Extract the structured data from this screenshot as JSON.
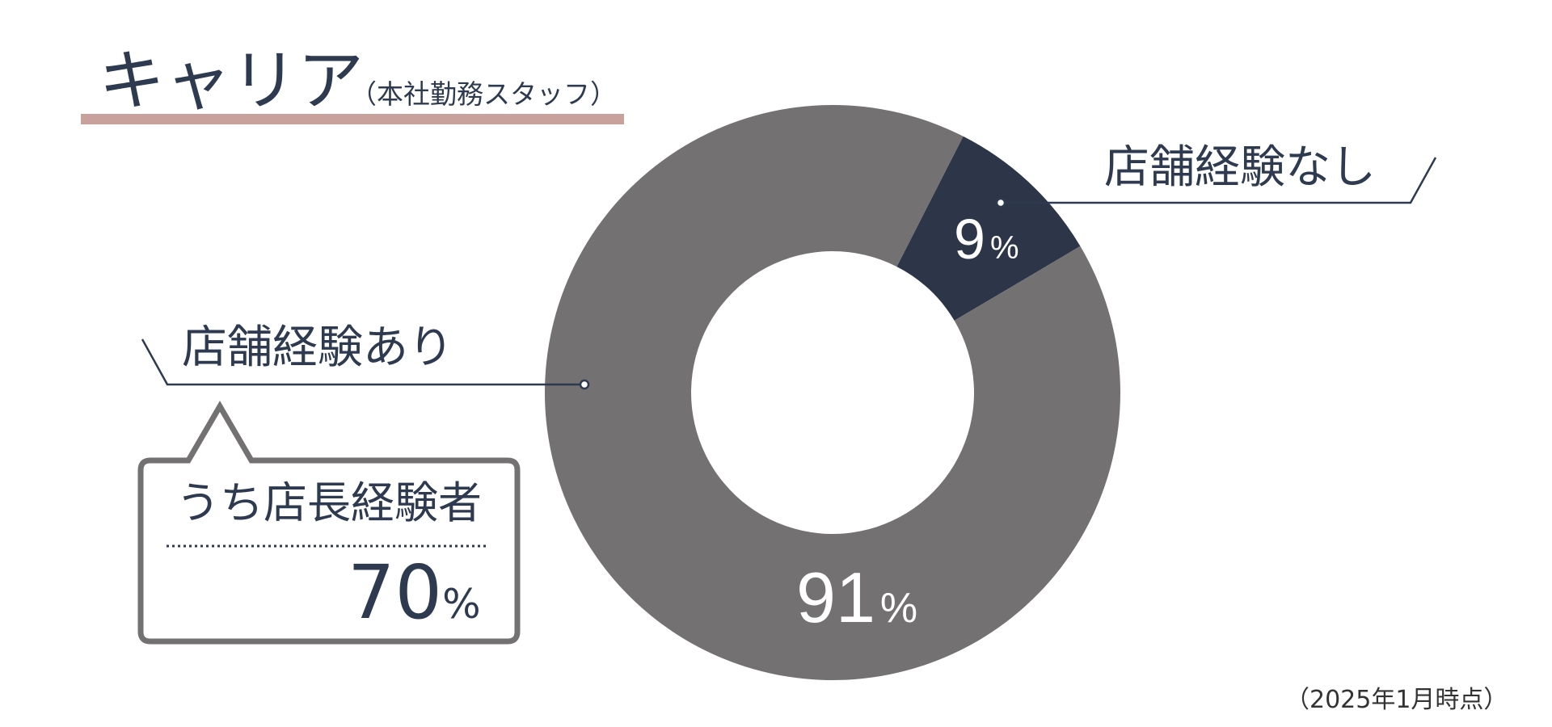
{
  "title": {
    "main": "キャリア",
    "sub": "（本社勤務スタッフ）"
  },
  "chart_data": {
    "type": "pie",
    "donut": true,
    "slices": [
      {
        "label": "店舗経験なし",
        "value": 9,
        "value_label": "9",
        "color": "#2d3649"
      },
      {
        "label": "店舗経験あり",
        "value": 91,
        "value_label": "91",
        "color": "#737172"
      }
    ],
    "unit": "%",
    "callout": {
      "text": "うち店長経験者",
      "value_label": "70",
      "unit": "%"
    }
  },
  "footnote": "（2025年1月時点）",
  "colors": {
    "text": "#2e3a4f",
    "underline": "#c9a19c",
    "callout_border": "#737172"
  }
}
